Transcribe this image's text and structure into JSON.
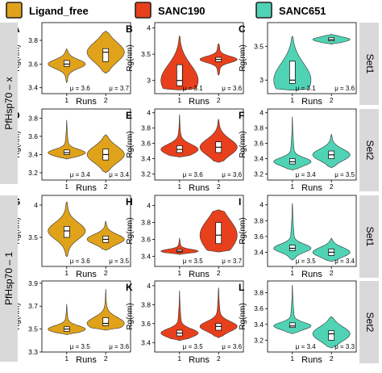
{
  "legend": [
    {
      "label": "Ligand_free",
      "color": "#e0a21b"
    },
    {
      "label": "SANC190",
      "color": "#e8401c"
    },
    {
      "label": "SANC651",
      "color": "#4fd3b4"
    }
  ],
  "strips": {
    "col_right": [
      "Set1",
      "Set2",
      "Set1",
      "Set2"
    ],
    "row_left": [
      "PfHsp70 – x",
      "PfHsp70 – 1"
    ]
  },
  "axis": {
    "ylabel": "Rg(nm)",
    "xlabel": "Runs"
  },
  "chart_data": [
    {
      "type": "violin",
      "panel": "A",
      "ylabel": "Rg(nm)",
      "xlabel": "",
      "categories": [
        "1",
        "2"
      ],
      "yticks": [
        3.4,
        3.6,
        3.8
      ],
      "ylim": [
        3.35,
        3.95
      ],
      "color": "#e0a21b",
      "series": [
        {
          "name": "1",
          "median": 3.6,
          "q1": 3.58,
          "q3": 3.63,
          "min": 3.44,
          "max": 3.73
        },
        {
          "name": "2",
          "median": 3.7,
          "q1": 3.62,
          "q3": 3.73,
          "min": 3.52,
          "max": 3.88
        }
      ],
      "annotations": [
        "μ = 3.6",
        "μ = 3.7"
      ]
    },
    {
      "type": "violin",
      "panel": "B",
      "ylabel": "Rg(nm)",
      "xlabel": "",
      "categories": [
        "1",
        "2"
      ],
      "yticks": [
        3.0,
        3.5,
        4.0
      ],
      "ylim": [
        2.75,
        4.1
      ],
      "color": "#e8401c",
      "series": [
        {
          "name": "1",
          "median": 3.0,
          "q1": 2.9,
          "q3": 3.3,
          "min": 2.82,
          "max": 3.85
        },
        {
          "name": "2",
          "median": 3.4,
          "q1": 3.36,
          "q3": 3.44,
          "min": 3.1,
          "max": 3.7
        }
      ],
      "annotations": [
        "μ = 3.1",
        "μ = 3.6"
      ]
    },
    {
      "type": "violin",
      "panel": "C",
      "ylabel": "Rg(nm)",
      "xlabel": "",
      "categories": [
        "1",
        "2"
      ],
      "yticks": [
        3.0,
        3.5
      ],
      "ylim": [
        2.8,
        3.85
      ],
      "color": "#4fd3b4",
      "series": [
        {
          "name": "1",
          "median": 3.0,
          "q1": 2.95,
          "q3": 3.28,
          "min": 2.85,
          "max": 3.65
        },
        {
          "name": "2",
          "median": 3.6,
          "q1": 3.58,
          "q3": 3.63,
          "min": 3.53,
          "max": 3.68
        }
      ],
      "annotations": [
        "μ = 3.1",
        "μ = 3.6"
      ]
    },
    {
      "type": "violin",
      "panel": "D",
      "ylabel": "Rg(nm)",
      "xlabel": "",
      "categories": [
        "1",
        "2"
      ],
      "yticks": [
        3.2,
        3.4,
        3.6,
        3.8
      ],
      "ylim": [
        3.12,
        3.9
      ],
      "color": "#e0a21b",
      "series": [
        {
          "name": "1",
          "median": 3.42,
          "q1": 3.4,
          "q3": 3.45,
          "min": 3.35,
          "max": 3.78
        },
        {
          "name": "2",
          "median": 3.4,
          "q1": 3.34,
          "q3": 3.46,
          "min": 3.2,
          "max": 3.62
        }
      ],
      "annotations": [
        "μ = 3.4",
        "μ = 3.4"
      ]
    },
    {
      "type": "violin",
      "panel": "E",
      "ylabel": "Rg(nm)",
      "xlabel": "",
      "categories": [
        "1",
        "2"
      ],
      "yticks": [
        3.2,
        3.4,
        3.6,
        3.8,
        4.0
      ],
      "ylim": [
        3.12,
        4.05
      ],
      "color": "#e8401c",
      "series": [
        {
          "name": "1",
          "median": 3.52,
          "q1": 3.48,
          "q3": 3.57,
          "min": 3.42,
          "max": 3.98
        },
        {
          "name": "2",
          "median": 3.55,
          "q1": 3.48,
          "q3": 3.62,
          "min": 3.35,
          "max": 3.92
        }
      ],
      "annotations": [
        "μ = 3.6",
        "μ = 3.6"
      ]
    },
    {
      "type": "violin",
      "panel": "F",
      "ylabel": "Rg(nm)",
      "xlabel": "",
      "categories": [
        "1",
        "2"
      ],
      "yticks": [
        3.2,
        3.4,
        3.6,
        3.8,
        4.0
      ],
      "ylim": [
        3.12,
        4.05
      ],
      "color": "#4fd3b4",
      "series": [
        {
          "name": "1",
          "median": 3.36,
          "q1": 3.33,
          "q3": 3.4,
          "min": 3.25,
          "max": 3.95
        },
        {
          "name": "2",
          "median": 3.45,
          "q1": 3.4,
          "q3": 3.5,
          "min": 3.28,
          "max": 3.72
        }
      ],
      "annotations": [
        "μ = 3.4",
        "μ = 3.5"
      ]
    },
    {
      "type": "violin",
      "panel": "G",
      "ylabel": "Rg(nm)",
      "xlabel": "",
      "categories": [
        "1",
        "2"
      ],
      "yticks": [
        3.5,
        4.0
      ],
      "ylim": [
        3.05,
        4.15
      ],
      "color": "#e0a21b",
      "series": [
        {
          "name": "1",
          "median": 3.6,
          "q1": 3.5,
          "q3": 3.67,
          "min": 3.2,
          "max": 4.05
        },
        {
          "name": "2",
          "median": 3.47,
          "q1": 3.42,
          "q3": 3.52,
          "min": 3.3,
          "max": 3.75
        }
      ],
      "annotations": [
        "μ = 3.6",
        "μ = 3.5"
      ]
    },
    {
      "type": "violin",
      "panel": "H",
      "ylabel": "Rg(nm)",
      "xlabel": "",
      "categories": [
        "1",
        "2"
      ],
      "yticks": [
        3.4,
        3.6,
        3.8,
        4.0
      ],
      "ylim": [
        3.28,
        4.12
      ],
      "color": "#e8401c",
      "series": [
        {
          "name": "1",
          "median": 3.46,
          "q1": 3.45,
          "q3": 3.48,
          "min": 3.42,
          "max": 3.62
        },
        {
          "name": "2",
          "median": 3.65,
          "q1": 3.55,
          "q3": 3.8,
          "min": 3.45,
          "max": 3.95
        }
      ],
      "annotations": [
        "μ = 3.5",
        "μ = 3.7"
      ]
    },
    {
      "type": "violin",
      "panel": "I",
      "ylabel": "Rg(nm)",
      "xlabel": "",
      "categories": [
        "1",
        "2"
      ],
      "yticks": [
        3.4,
        3.6,
        3.8,
        4.0
      ],
      "ylim": [
        3.22,
        4.12
      ],
      "color": "#4fd3b4",
      "series": [
        {
          "name": "1",
          "median": 3.45,
          "q1": 3.42,
          "q3": 3.49,
          "min": 3.3,
          "max": 4.02
        },
        {
          "name": "2",
          "median": 3.4,
          "q1": 3.36,
          "q3": 3.44,
          "min": 3.28,
          "max": 3.58
        }
      ],
      "annotations": [
        "μ = 3.5",
        "μ = 3.4"
      ]
    },
    {
      "type": "violin",
      "panel": "J",
      "ylabel": "Rg(nm)",
      "xlabel": "",
      "categories": [
        "1",
        "2"
      ],
      "yticks": [
        3.3,
        3.5,
        3.7,
        3.9
      ],
      "ylim": [
        3.3,
        3.92
      ],
      "color": "#e0a21b",
      "series": [
        {
          "name": "1",
          "median": 3.5,
          "q1": 3.48,
          "q3": 3.52,
          "min": 3.45,
          "max": 3.72
        },
        {
          "name": "2",
          "median": 3.55,
          "q1": 3.53,
          "q3": 3.6,
          "min": 3.49,
          "max": 3.85
        }
      ],
      "annotations": [
        "μ = 3.5",
        "μ = 3.6"
      ]
    },
    {
      "type": "violin",
      "panel": "K",
      "ylabel": "Rg(nm)",
      "xlabel": "",
      "categories": [
        "1",
        "2"
      ],
      "yticks": [
        3.4,
        3.6,
        3.8,
        4.0
      ],
      "ylim": [
        3.3,
        4.05
      ],
      "color": "#e8401c",
      "series": [
        {
          "name": "1",
          "median": 3.5,
          "q1": 3.47,
          "q3": 3.53,
          "min": 3.42,
          "max": 3.95
        },
        {
          "name": "2",
          "median": 3.57,
          "q1": 3.53,
          "q3": 3.6,
          "min": 3.45,
          "max": 3.98
        }
      ],
      "annotations": [
        "μ = 3.5",
        "μ = 3.6"
      ]
    },
    {
      "type": "violin",
      "panel": "L",
      "ylabel": "Rg(nm)",
      "xlabel": "",
      "categories": [
        "1",
        "2"
      ],
      "yticks": [
        3.2,
        3.4,
        3.6,
        3.8
      ],
      "ylim": [
        3.05,
        3.95
      ],
      "color": "#4fd3b4",
      "series": [
        {
          "name": "1",
          "median": 3.38,
          "q1": 3.36,
          "q3": 3.42,
          "min": 3.28,
          "max": 3.9
        },
        {
          "name": "2",
          "median": 3.28,
          "q1": 3.2,
          "q3": 3.32,
          "min": 3.1,
          "max": 3.5
        }
      ],
      "annotations": [
        "μ = 3.4",
        "μ = 3.3"
      ]
    }
  ]
}
